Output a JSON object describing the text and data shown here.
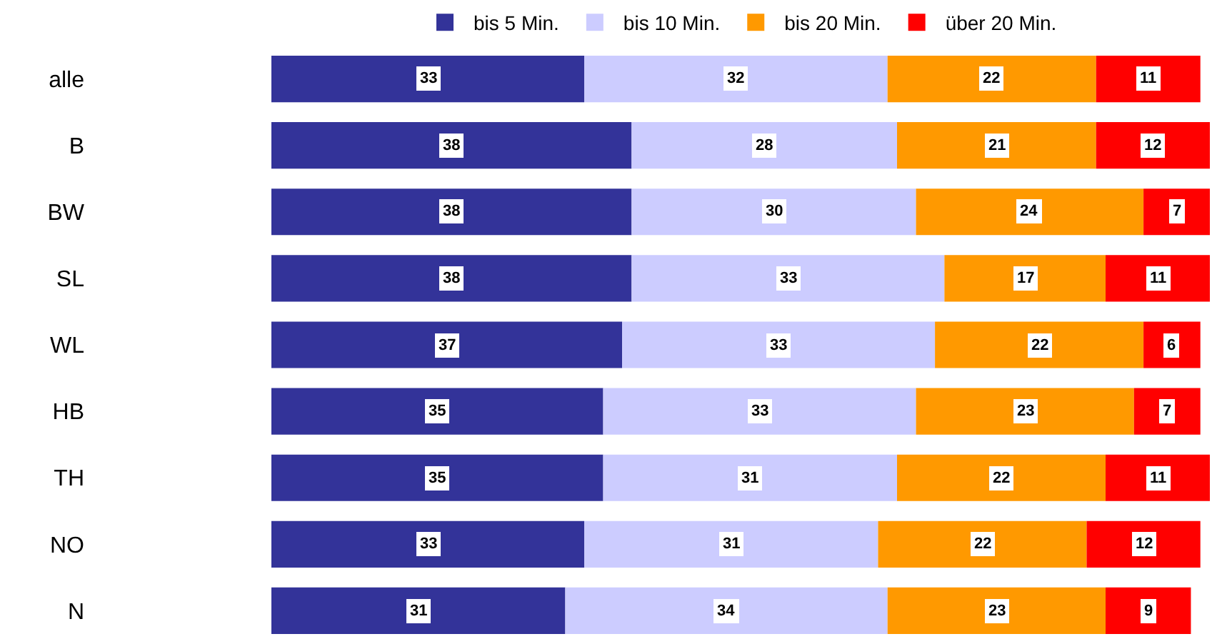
{
  "chart_data": {
    "type": "bar",
    "orientation": "horizontal",
    "stacked": true,
    "data_labels": true,
    "legend": "top",
    "categories": [
      "alle",
      "B",
      "BW",
      "SL",
      "WL",
      "HB",
      "TH",
      "NO",
      "N"
    ],
    "series": [
      {
        "name": "bis 5 Min.",
        "color": "#333399",
        "values": [
          33,
          38,
          38,
          38,
          37,
          35,
          35,
          33,
          31
        ]
      },
      {
        "name": "bis 10 Min.",
        "color": "#ccccff",
        "values": [
          32,
          28,
          30,
          33,
          33,
          33,
          31,
          31,
          34
        ]
      },
      {
        "name": "bis 20 Min.",
        "color": "#ff9900",
        "values": [
          22,
          21,
          24,
          17,
          22,
          23,
          22,
          22,
          23
        ]
      },
      {
        "name": "über 20 Min.",
        "color": "#ff0000",
        "values": [
          11,
          12,
          7,
          11,
          6,
          7,
          11,
          12,
          9
        ]
      }
    ]
  }
}
